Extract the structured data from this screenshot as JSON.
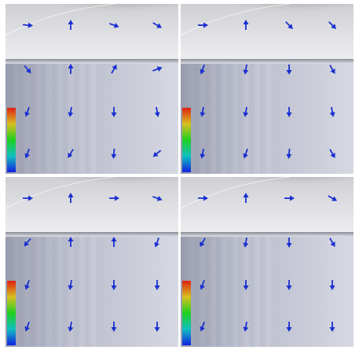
{
  "panels": [
    {
      "arrow_angles": [
        [
          5,
          -90,
          20,
          30
        ],
        [
          50,
          -90,
          -60,
          -20
        ],
        [
          110,
          100,
          90,
          80
        ],
        [
          110,
          120,
          95,
          140
        ]
      ]
    },
    {
      "arrow_angles": [
        [
          0,
          -90,
          45,
          45
        ],
        [
          110,
          100,
          90,
          60
        ],
        [
          100,
          100,
          90,
          80
        ],
        [
          100,
          110,
          95,
          60
        ]
      ]
    },
    {
      "arrow_angles": [
        [
          0,
          -90,
          0,
          20
        ],
        [
          130,
          -90,
          -90,
          110
        ],
        [
          110,
          100,
          90,
          90
        ],
        [
          110,
          100,
          90,
          90
        ]
      ]
    },
    {
      "arrow_angles": [
        [
          0,
          -90,
          0,
          30
        ],
        [
          120,
          100,
          90,
          60
        ],
        [
          110,
          90,
          90,
          90
        ],
        [
          110,
          100,
          90,
          90
        ]
      ]
    }
  ]
}
